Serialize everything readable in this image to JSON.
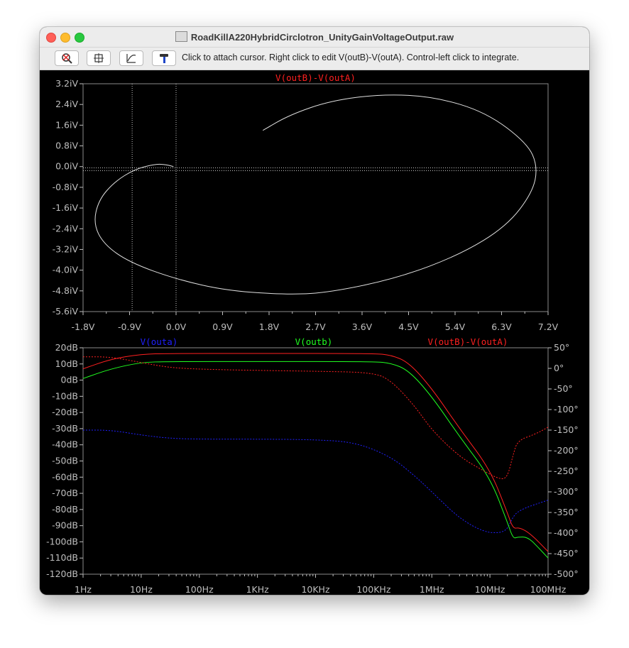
{
  "window": {
    "title": "RoadKillA220HybridCirclotron_UnityGainVoltageOutput.raw",
    "hint": "Click to attach cursor. Right click to edit V(outB)-V(outA).  Control-left click to integrate."
  },
  "toolbar": {
    "buttons": [
      "zoom-out",
      "autorange",
      "measure",
      "probe"
    ]
  },
  "colors": {
    "background": "#000000",
    "grid": "#c8c8c8",
    "red": "#ff2020",
    "green": "#20ff20",
    "blue": "#2020ff",
    "white": "#e0e0e0"
  },
  "chart_data": [
    {
      "type": "line",
      "title": "V(outB)-V(outA)",
      "xlabel": "",
      "ylabel": "",
      "xlim": [
        -1.8,
        7.2
      ],
      "ylim": [
        -5.6,
        3.2
      ],
      "x_ticks": [
        "-1.8V",
        "-0.9V",
        "0.0V",
        "0.9V",
        "1.8V",
        "2.7V",
        "3.6V",
        "4.5V",
        "5.4V",
        "6.3V",
        "7.2V"
      ],
      "y_ticks": [
        "3.2iV",
        "2.4iV",
        "1.6iV",
        "0.8iV",
        "0.0iV",
        "-0.8iV",
        "-1.6iV",
        "-2.4iV",
        "-3.2iV",
        "-4.0iV",
        "-4.8iV",
        "-5.6iV"
      ],
      "cursors_x": [
        -0.85,
        0.0
      ],
      "cursor_y": -0.05,
      "series": [
        {
          "name": "V(outB)-V(outA)",
          "color": "#e0e0e0",
          "points": [
            [
              1.68,
              1.4
            ],
            [
              2.2,
              2.0
            ],
            [
              3.0,
              2.55
            ],
            [
              4.0,
              2.8
            ],
            [
              5.0,
              2.7
            ],
            [
              6.0,
              2.1
            ],
            [
              6.8,
              0.9
            ],
            [
              7.0,
              0.0
            ],
            [
              6.9,
              -1.0
            ],
            [
              6.4,
              -2.3
            ],
            [
              5.5,
              -3.4
            ],
            [
              4.3,
              -4.3
            ],
            [
              3.0,
              -4.85
            ],
            [
              2.2,
              -4.95
            ],
            [
              1.0,
              -4.8
            ],
            [
              0.0,
              -4.35
            ],
            [
              -0.9,
              -3.7
            ],
            [
              -1.4,
              -3.0
            ],
            [
              -1.6,
              -2.2
            ],
            [
              -1.5,
              -1.3
            ],
            [
              -1.2,
              -0.6
            ],
            [
              -0.8,
              -0.1
            ],
            [
              -0.4,
              0.1
            ],
            [
              -0.2,
              0.08
            ],
            [
              -0.05,
              0.0
            ]
          ]
        }
      ]
    },
    {
      "type": "line",
      "title": "",
      "xlabel": "",
      "ylabel": "",
      "x_scale": "log",
      "xlim": [
        1,
        100000000
      ],
      "ylim": [
        -120,
        20
      ],
      "y2lim": [
        -500,
        50
      ],
      "x_ticks": [
        "1Hz",
        "10Hz",
        "100Hz",
        "1KHz",
        "10KHz",
        "100KHz",
        "1MHz",
        "10MHz",
        "100MHz"
      ],
      "y_ticks": [
        "20dB",
        "10dB",
        "0dB",
        "-10dB",
        "-20dB",
        "-30dB",
        "-40dB",
        "-50dB",
        "-60dB",
        "-70dB",
        "-80dB",
        "-90dB",
        "-100dB",
        "-110dB",
        "-120dB"
      ],
      "y2_ticks": [
        "50°",
        "0°",
        "-50°",
        "-100°",
        "-150°",
        "-200°",
        "-250°",
        "-300°",
        "-350°",
        "-400°",
        "-450°",
        "-500°"
      ],
      "series": [
        {
          "name": "V(outa)",
          "color": "#2020ff",
          "dashed": true,
          "axis": "phase",
          "points": [
            [
              1,
              -150
            ],
            [
              3,
              -150
            ],
            [
              10,
              -162
            ],
            [
              30,
              -170
            ],
            [
              100,
              -172
            ],
            [
              1000,
              -172
            ],
            [
              10000,
              -173
            ],
            [
              50000,
              -180
            ],
            [
              200000,
              -215
            ],
            [
              500000,
              -260
            ],
            [
              1000000,
              -300
            ],
            [
              3000000,
              -365
            ],
            [
              8000000,
              -398
            ],
            [
              15000000,
              -400
            ],
            [
              20000000,
              -390
            ],
            [
              23000000,
              -370
            ],
            [
              30000000,
              -345
            ],
            [
              100000000,
              -320
            ]
          ]
        },
        {
          "name": "V(outb)",
          "color": "#20ff20",
          "dashed": false,
          "axis": "dB",
          "points": [
            [
              1,
              1
            ],
            [
              3,
              7
            ],
            [
              10,
              11
            ],
            [
              30,
              11.5
            ],
            [
              1000,
              11.5
            ],
            [
              100000,
              11.5
            ],
            [
              200000,
              10.5
            ],
            [
              400000,
              6
            ],
            [
              1000000,
              -10
            ],
            [
              3000000,
              -35
            ],
            [
              10000000,
              -60
            ],
            [
              20000000,
              -88
            ],
            [
              25000000,
              -98
            ],
            [
              30000000,
              -97
            ],
            [
              45000000,
              -97
            ],
            [
              70000000,
              -104
            ],
            [
              100000000,
              -110
            ]
          ]
        },
        {
          "name": "V(outB)-V(outA)",
          "color": "#ff2020",
          "dashed": false,
          "axis": "dB",
          "points": [
            [
              1,
              7
            ],
            [
              3,
              13
            ],
            [
              10,
              16
            ],
            [
              30,
              16.5
            ],
            [
              1000,
              16.5
            ],
            [
              100000,
              16.5
            ],
            [
              200000,
              15.5
            ],
            [
              400000,
              11
            ],
            [
              1000000,
              -5
            ],
            [
              3000000,
              -30
            ],
            [
              10000000,
              -55
            ],
            [
              20000000,
              -82
            ],
            [
              25000000,
              -92
            ],
            [
              32000000,
              -91
            ],
            [
              50000000,
              -95
            ],
            [
              100000000,
              -106
            ]
          ]
        },
        {
          "name": "V(outB)-V(outA) phase",
          "color": "#ff2020",
          "dashed": true,
          "axis": "phase",
          "points": [
            [
              1,
              28
            ],
            [
              3,
              28
            ],
            [
              10,
              14
            ],
            [
              30,
              2
            ],
            [
              100,
              -2
            ],
            [
              1000,
              -5
            ],
            [
              10000,
              -7
            ],
            [
              100000,
              -10
            ],
            [
              200000,
              -30
            ],
            [
              500000,
              -90
            ],
            [
              1000000,
              -150
            ],
            [
              3000000,
              -215
            ],
            [
              8000000,
              -250
            ],
            [
              15000000,
              -270
            ],
            [
              20000000,
              -265
            ],
            [
              25000000,
              -210
            ],
            [
              30000000,
              -175
            ],
            [
              60000000,
              -160
            ],
            [
              100000000,
              -143
            ]
          ]
        }
      ]
    }
  ]
}
